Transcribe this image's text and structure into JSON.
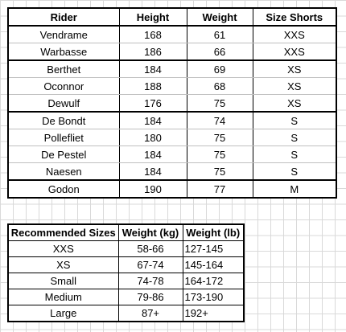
{
  "riders_table": {
    "headers": [
      "Rider",
      "Height",
      "Weight",
      "Size Shorts"
    ],
    "rows": [
      [
        "Vendrame",
        "168",
        "61",
        "XXS"
      ],
      [
        "Warbasse",
        "186",
        "66",
        "XXS"
      ],
      [
        "Berthet",
        "184",
        "69",
        "XS"
      ],
      [
        "Oconnor",
        "188",
        "68",
        "XS"
      ],
      [
        "Dewulf",
        "176",
        "75",
        "XS"
      ],
      [
        "De Bondt",
        "184",
        "74",
        "S"
      ],
      [
        "Pollefliet",
        "180",
        "75",
        "S"
      ],
      [
        "De Pestel",
        "184",
        "75",
        "S"
      ],
      [
        "Naesen",
        "184",
        "75",
        "S"
      ],
      [
        "Godon",
        "190",
        "77",
        "M"
      ]
    ]
  },
  "sizes_table": {
    "headers": [
      "Recommended Sizes",
      "Weight (kg)",
      "Weight (lb)"
    ],
    "rows": [
      [
        "XXS",
        "58-66",
        "127-145"
      ],
      [
        "XS",
        "67-74",
        "145-164"
      ],
      [
        "Small",
        "74-78",
        "164-172"
      ],
      [
        "Medium",
        "79-86",
        "173-190"
      ],
      [
        "Large",
        "87+",
        "192+"
      ]
    ]
  },
  "colors": {
    "gridline": "#d9d9d9",
    "border": "#000000",
    "inner_border": "#bfbfbf"
  }
}
